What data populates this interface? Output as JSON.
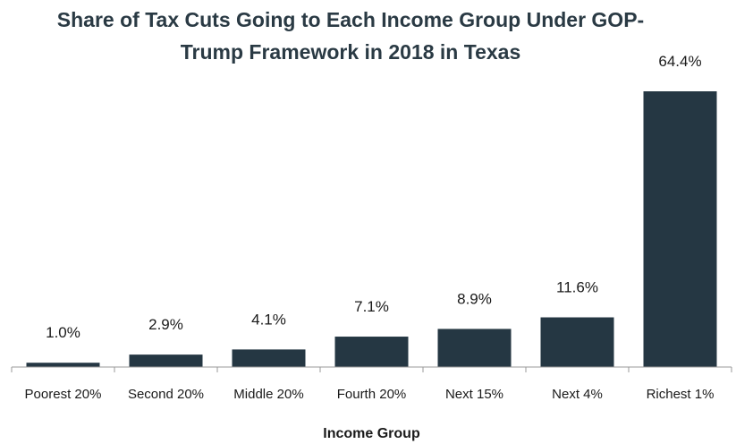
{
  "chart_data": {
    "type": "bar",
    "title_lines": [
      "Share of Tax Cuts Going to Each Income Group Under GOP-",
      "Trump Framework in 2018 in Texas"
    ],
    "xlabel": "Income Group",
    "ylabel": "",
    "categories": [
      "Poorest 20%",
      "Second 20%",
      "Middle 20%",
      "Fourth 20%",
      "Next 15%",
      "Next 4%",
      "Richest 1%"
    ],
    "values": [
      1.0,
      2.9,
      4.1,
      7.1,
      8.9,
      11.6,
      64.4
    ],
    "data_labels": [
      "1.0%",
      "2.9%",
      "4.1%",
      "7.1%",
      "8.9%",
      "11.6%",
      "64.4%"
    ],
    "ylim": [
      0,
      64.4
    ],
    "grid": false,
    "legend": "none",
    "colors": {
      "bar": "#253743",
      "axis": "#999999",
      "title": "#2a3a44"
    }
  }
}
